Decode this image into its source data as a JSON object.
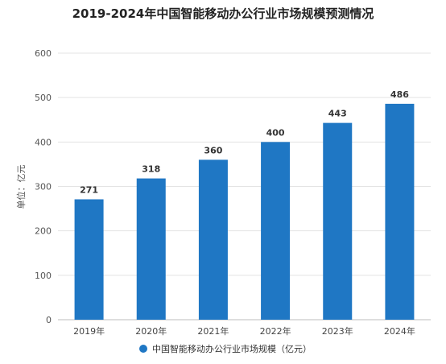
{
  "chart_data": {
    "type": "bar",
    "title": "2019-2024年中国智能移动办公行业市场规模预测情况",
    "ylabel": "单位：亿元",
    "categories": [
      "2019年",
      "2020年",
      "2021年",
      "2022年",
      "2023年",
      "2024年"
    ],
    "values": [
      271,
      318,
      360,
      400,
      443,
      486
    ],
    "ylim": [
      0,
      600
    ],
    "yticks": [
      0,
      100,
      200,
      300,
      400,
      500,
      600
    ],
    "grid": true,
    "legend": {
      "position": "bottom",
      "label": "中国智能移动办公行业市场规模（亿元）"
    },
    "colors": {
      "bar": "#1f77c4",
      "grid": "#e3e3e3",
      "text": "#333333"
    }
  }
}
